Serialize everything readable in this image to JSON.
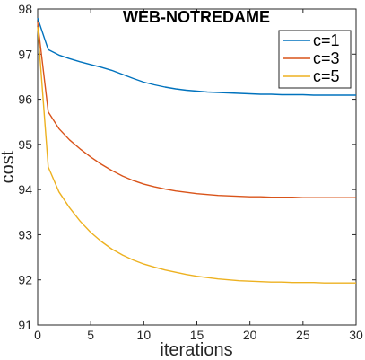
{
  "chart_data": {
    "type": "line",
    "title": "WEB-NOTREDAME",
    "xlabel": "iterations",
    "ylabel": "cost",
    "xlim": [
      0,
      30
    ],
    "ylim": [
      91,
      98
    ],
    "xticks": [
      0,
      5,
      10,
      15,
      20,
      25,
      30
    ],
    "yticks": [
      91,
      92,
      93,
      94,
      95,
      96,
      97,
      98
    ],
    "grid": false,
    "legend_position": "top-right",
    "x": [
      0,
      1,
      2,
      3,
      4,
      5,
      6,
      7,
      8,
      9,
      10,
      11,
      12,
      13,
      14,
      15,
      16,
      17,
      18,
      19,
      20,
      21,
      22,
      23,
      24,
      25,
      26,
      27,
      28,
      29,
      30
    ],
    "series": [
      {
        "name": "c=1",
        "color": "#0072BD",
        "values": [
          97.8,
          97.1,
          96.98,
          96.9,
          96.83,
          96.77,
          96.71,
          96.64,
          96.55,
          96.46,
          96.38,
          96.32,
          96.27,
          96.23,
          96.2,
          96.18,
          96.16,
          96.15,
          96.14,
          96.13,
          96.12,
          96.11,
          96.11,
          96.1,
          96.1,
          96.1,
          96.09,
          96.09,
          96.09,
          96.09,
          96.09
        ]
      },
      {
        "name": "c=3",
        "color": "#D95319",
        "values": [
          97.7,
          95.72,
          95.35,
          95.1,
          94.9,
          94.72,
          94.56,
          94.42,
          94.3,
          94.2,
          94.12,
          94.06,
          94.01,
          93.97,
          93.94,
          93.91,
          93.89,
          93.87,
          93.86,
          93.85,
          93.84,
          93.84,
          93.83,
          93.83,
          93.83,
          93.82,
          93.82,
          93.82,
          93.82,
          93.82,
          93.82
        ]
      },
      {
        "name": "c=5",
        "color": "#EDB120",
        "values": [
          97.6,
          94.5,
          93.95,
          93.6,
          93.3,
          93.05,
          92.85,
          92.68,
          92.55,
          92.44,
          92.35,
          92.28,
          92.22,
          92.17,
          92.12,
          92.08,
          92.05,
          92.02,
          92.0,
          91.98,
          91.97,
          91.96,
          91.95,
          91.95,
          91.94,
          91.94,
          91.94,
          91.93,
          91.93,
          91.93,
          91.93
        ]
      }
    ]
  }
}
